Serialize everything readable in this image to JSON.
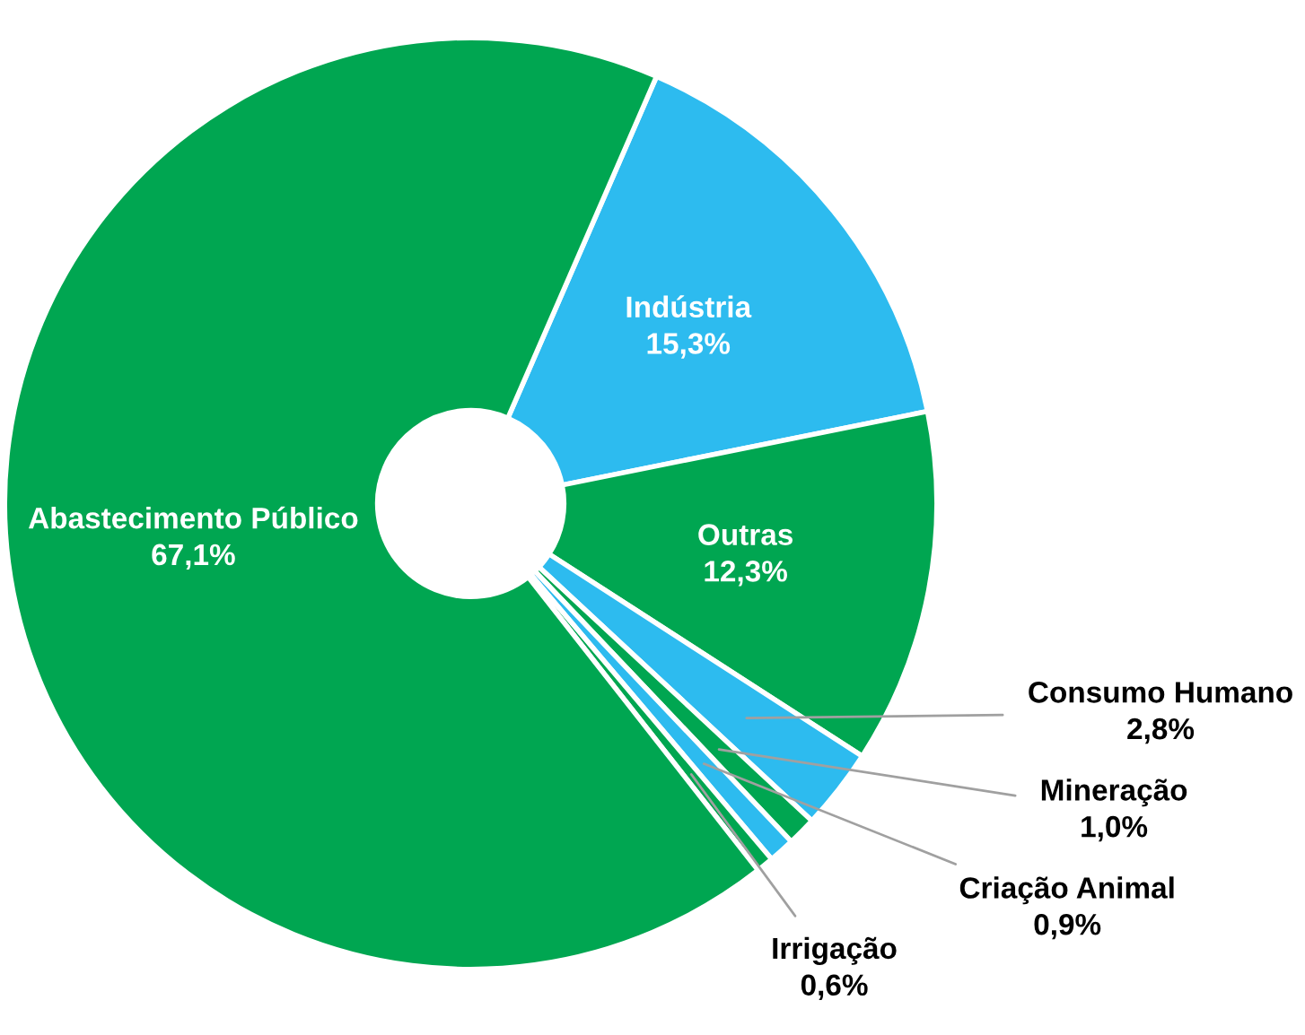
{
  "chart_data": {
    "type": "donut",
    "categories": [
      "Indústria",
      "Outras",
      "Consumo Humano",
      "Mineração",
      "Criação Animal",
      "Irrigação",
      "Abastecimento Público"
    ],
    "values": [
      15.3,
      12.3,
      2.8,
      1.0,
      0.9,
      0.6,
      67.1
    ],
    "colors": [
      "#2dbbef",
      "#00a651",
      "#2dbbef",
      "#00a651",
      "#2dbbef",
      "#00a651",
      "#00a651"
    ],
    "value_labels": [
      "15,3%",
      "12,3%",
      "2,8%",
      "1,0%",
      "0,9%",
      "0,6%",
      "67,1%"
    ],
    "legend": false
  }
}
